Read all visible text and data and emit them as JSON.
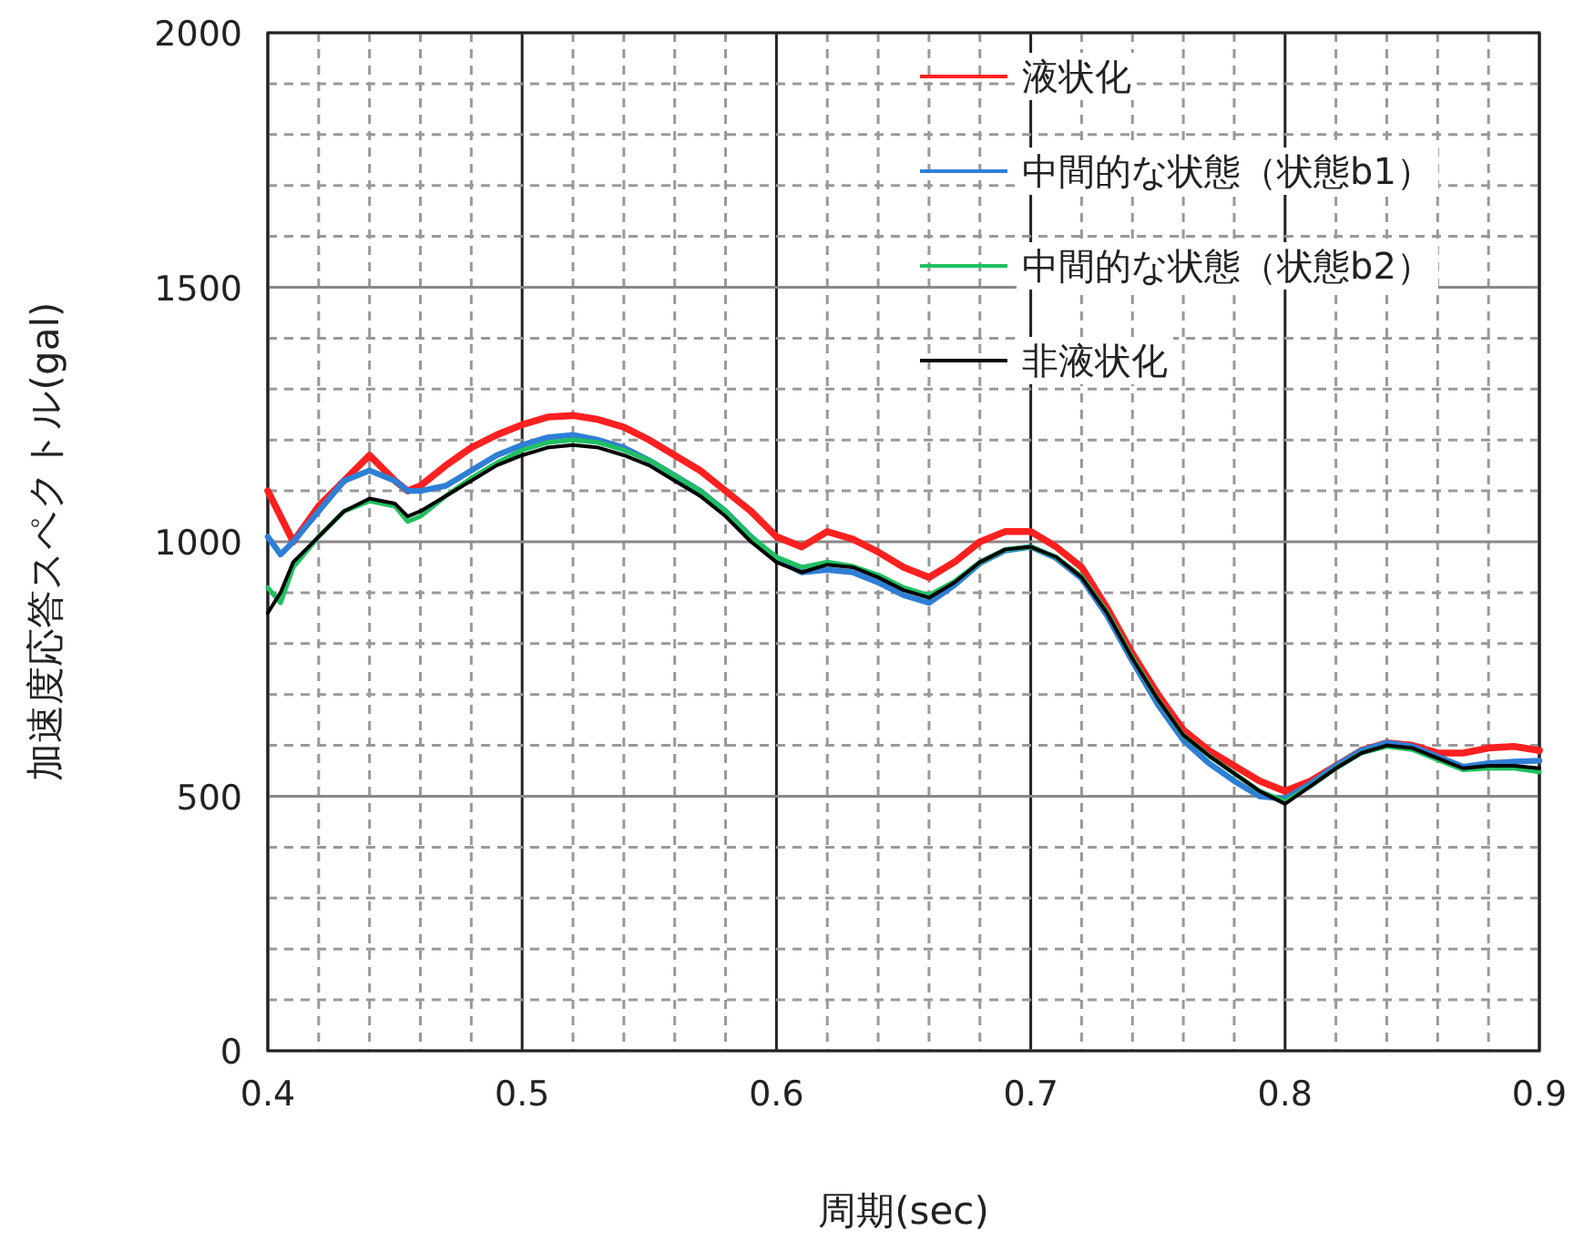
{
  "chart_data": {
    "type": "line",
    "xlabel": "周期(sec)",
    "ylabel": "加速度応答スペクトル(gal)",
    "x": [
      0.4,
      0.405,
      0.41,
      0.42,
      0.43,
      0.44,
      0.45,
      0.455,
      0.46,
      0.47,
      0.48,
      0.49,
      0.5,
      0.51,
      0.52,
      0.53,
      0.54,
      0.55,
      0.56,
      0.57,
      0.58,
      0.59,
      0.6,
      0.61,
      0.62,
      0.63,
      0.64,
      0.65,
      0.66,
      0.67,
      0.68,
      0.69,
      0.7,
      0.71,
      0.72,
      0.73,
      0.74,
      0.75,
      0.76,
      0.77,
      0.78,
      0.79,
      0.8,
      0.81,
      0.82,
      0.83,
      0.84,
      0.85,
      0.86,
      0.87,
      0.88,
      0.89,
      0.9
    ],
    "series": [
      {
        "name": "液状化",
        "color": "#ff2020",
        "values": [
          1100,
          1050,
          1000,
          1070,
          1120,
          1170,
          1120,
          1100,
          1110,
          1150,
          1185,
          1210,
          1230,
          1245,
          1248,
          1240,
          1225,
          1200,
          1170,
          1140,
          1100,
          1060,
          1010,
          990,
          1020,
          1005,
          980,
          950,
          930,
          960,
          1000,
          1020,
          1020,
          990,
          950,
          870,
          780,
          700,
          630,
          590,
          560,
          530,
          510,
          530,
          560,
          590,
          605,
          600,
          585,
          585,
          595,
          598,
          590
        ]
      },
      {
        "name": "中間的な状態（状態b1）",
        "color": "#2e7fd6",
        "values": [
          1010,
          975,
          1000,
          1060,
          1120,
          1140,
          1120,
          1100,
          1100,
          1110,
          1140,
          1170,
          1190,
          1205,
          1210,
          1200,
          1185,
          1160,
          1130,
          1100,
          1060,
          1010,
          965,
          940,
          945,
          940,
          920,
          895,
          880,
          915,
          958,
          983,
          990,
          968,
          928,
          855,
          765,
          680,
          610,
          565,
          530,
          500,
          495,
          525,
          560,
          590,
          605,
          598,
          578,
          558,
          565,
          568,
          570
        ]
      },
      {
        "name": "中間的な状態（状態b2）",
        "color": "#20c060",
        "values": [
          910,
          880,
          950,
          1010,
          1060,
          1080,
          1070,
          1040,
          1050,
          1090,
          1125,
          1155,
          1180,
          1195,
          1200,
          1195,
          1180,
          1160,
          1130,
          1100,
          1060,
          1010,
          970,
          950,
          960,
          952,
          935,
          910,
          895,
          922,
          960,
          985,
          990,
          970,
          932,
          862,
          772,
          690,
          620,
          580,
          545,
          510,
          490,
          520,
          555,
          585,
          598,
          592,
          572,
          552,
          555,
          555,
          548
        ]
      },
      {
        "name": "非液状化",
        "color": "#000000",
        "values": [
          860,
          900,
          960,
          1010,
          1060,
          1085,
          1075,
          1050,
          1060,
          1090,
          1120,
          1150,
          1170,
          1185,
          1190,
          1185,
          1170,
          1150,
          1120,
          1090,
          1050,
          1000,
          960,
          940,
          955,
          950,
          930,
          905,
          890,
          920,
          960,
          985,
          990,
          970,
          930,
          860,
          770,
          690,
          620,
          580,
          545,
          510,
          485,
          520,
          555,
          585,
          600,
          595,
          575,
          555,
          560,
          560,
          555
        ]
      }
    ],
    "xlim": [
      0.4,
      0.9
    ],
    "ylim": [
      0,
      2000
    ],
    "xticks": [
      0.4,
      0.5,
      0.6,
      0.7,
      0.8,
      0.9
    ],
    "yticks": [
      0,
      500,
      1000,
      1500,
      2000
    ],
    "grid": true,
    "legend": "top right",
    "marker": "none",
    "line_style": "solid"
  }
}
